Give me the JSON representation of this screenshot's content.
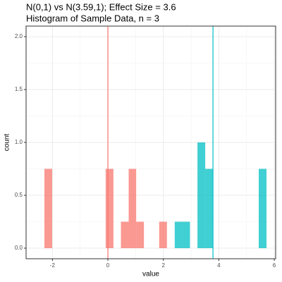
{
  "chart_data": {
    "type": "histogram",
    "title": "N(0,1) vs N(3.59,1); Effect Size = 3.6",
    "subtitle": "Histogram of Sample Data, n = 3",
    "x_label": "value",
    "y_label": "count",
    "bins": [
      -2.29,
      -2.01,
      -1.74,
      -1.46,
      -1.19,
      -0.91,
      -0.63,
      -0.36,
      -0.08,
      0.2,
      0.47,
      0.75,
      1.02,
      1.3,
      1.58,
      1.85,
      2.13,
      2.41,
      2.68,
      2.96,
      3.23,
      3.51,
      3.79,
      4.06,
      4.34,
      4.62,
      4.89,
      5.17,
      5.44,
      5.72
    ],
    "series": [
      {
        "color": "#F8766D",
        "values": [
          0.75,
          0,
          0,
          0,
          0,
          0,
          0,
          0,
          0.75,
          0,
          0.25,
          0.75,
          0.25,
          0,
          0,
          0.25,
          0,
          0,
          0,
          0,
          0,
          0,
          0,
          0,
          0,
          0,
          0,
          0,
          0
        ]
      },
      {
        "color": "#00BFC4",
        "values": [
          0,
          0,
          0,
          0,
          0,
          0,
          0,
          0,
          0,
          0,
          0,
          0,
          0,
          0,
          0,
          0,
          0,
          0.25,
          0.25,
          0,
          1.0,
          0.75,
          0,
          0,
          0,
          0,
          0,
          0,
          0.75
        ]
      }
    ],
    "vlines": [
      {
        "value": 0,
        "color": "#F8766D"
      },
      {
        "value": 3.79,
        "color": "#00BFC4"
      }
    ],
    "xlim": [
      -2.95,
      6.05
    ],
    "ylim": [
      -0.1,
      2.1
    ],
    "xticks": [
      -2,
      0,
      2,
      4,
      6
    ],
    "yticks": [
      {
        "value": 0,
        "label": "0.0"
      },
      {
        "value": 0.5,
        "label": "0.5"
      },
      {
        "value": 1.0,
        "label": "1.0"
      },
      {
        "value": 1.5,
        "label": "1.5"
      },
      {
        "value": 2.0,
        "label": "2.0"
      }
    ],
    "grid": true
  }
}
